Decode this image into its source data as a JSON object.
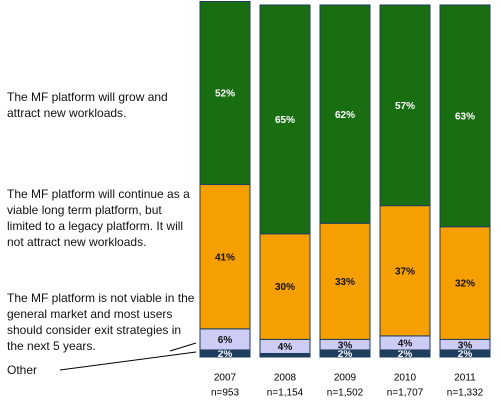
{
  "chart_data": {
    "type": "stacked-bar",
    "categories": [
      "2007",
      "2008",
      "2009",
      "2010",
      "2011"
    ],
    "sample_sizes": [
      "n=953",
      "n=1,154",
      "n=1,502",
      "n=1,707",
      "n=1,332"
    ],
    "ylim": [
      0,
      100
    ],
    "series": [
      {
        "name": "Other",
        "color": "#1f3d5c",
        "values": [
          2,
          1,
          2,
          2,
          2
        ],
        "value_labels": [
          "2%",
          null,
          "2%",
          "2%",
          "2%"
        ]
      },
      {
        "name": "The MF platform is not viable in the general market and most users should consider exit strategies in the next 5 years.",
        "color": "#ccccf5",
        "values": [
          6,
          4,
          3,
          4,
          3
        ],
        "value_labels": [
          "6%",
          "4%",
          "3%",
          "4%",
          "3%"
        ]
      },
      {
        "name": "The MF platform will continue as a viable long term platform, but limited to a legacy platform. It will not attract new workloads.",
        "color": "#f5a000",
        "values": [
          41,
          30,
          33,
          37,
          32
        ],
        "value_labels": [
          "41%",
          "30%",
          "33%",
          "37%",
          "32%"
        ]
      },
      {
        "name": "The MF platform will grow and attract new workloads.",
        "color": "#1a6e12",
        "values": [
          52,
          65,
          62,
          57,
          63
        ],
        "value_labels": [
          "52%",
          "65%",
          "62%",
          "57%",
          "63%"
        ]
      }
    ]
  }
}
